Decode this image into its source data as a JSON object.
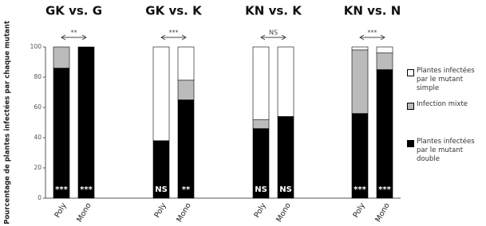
{
  "chart_data": {
    "type": "bar",
    "stacked": true,
    "ylabel": "Pourcentage de plantes infectées par chaque mutant",
    "ylim": [
      0,
      100
    ],
    "yticks": [
      0,
      20,
      40,
      60,
      80,
      100
    ],
    "series": [
      {
        "name": "Plantes infectées par le mutant double",
        "color": "#000000"
      },
      {
        "name": "Infection mixte",
        "color": "#bbbbbb"
      },
      {
        "name": "Plantes infectées par le mutant simple",
        "color": "#ffffff"
      }
    ],
    "panels": [
      {
        "title": "GK vs. G",
        "categories": [
          "Poly",
          "Mono"
        ],
        "values": [
          [
            86,
            100
          ],
          [
            14,
            0
          ],
          [
            0,
            0
          ]
        ],
        "bar_labels": [
          "***",
          "***"
        ],
        "comparison": "**"
      },
      {
        "title": "GK vs. K",
        "categories": [
          "Poly",
          "Mono"
        ],
        "values": [
          [
            38,
            65
          ],
          [
            0,
            13
          ],
          [
            62,
            22
          ]
        ],
        "bar_labels": [
          "NS",
          "**"
        ],
        "comparison": "***"
      },
      {
        "title": "KN vs. K",
        "categories": [
          "Poly",
          "Mono"
        ],
        "values": [
          [
            46,
            54
          ],
          [
            6,
            0
          ],
          [
            48,
            46
          ]
        ],
        "bar_labels": [
          "NS",
          "NS"
        ],
        "comparison": "NS"
      },
      {
        "title": "KN vs. N",
        "categories": [
          "Poly",
          "Mono"
        ],
        "values": [
          [
            56,
            85
          ],
          [
            42,
            11
          ],
          [
            2,
            4
          ]
        ],
        "bar_labels": [
          "***",
          "***"
        ],
        "comparison": "***"
      }
    ]
  }
}
